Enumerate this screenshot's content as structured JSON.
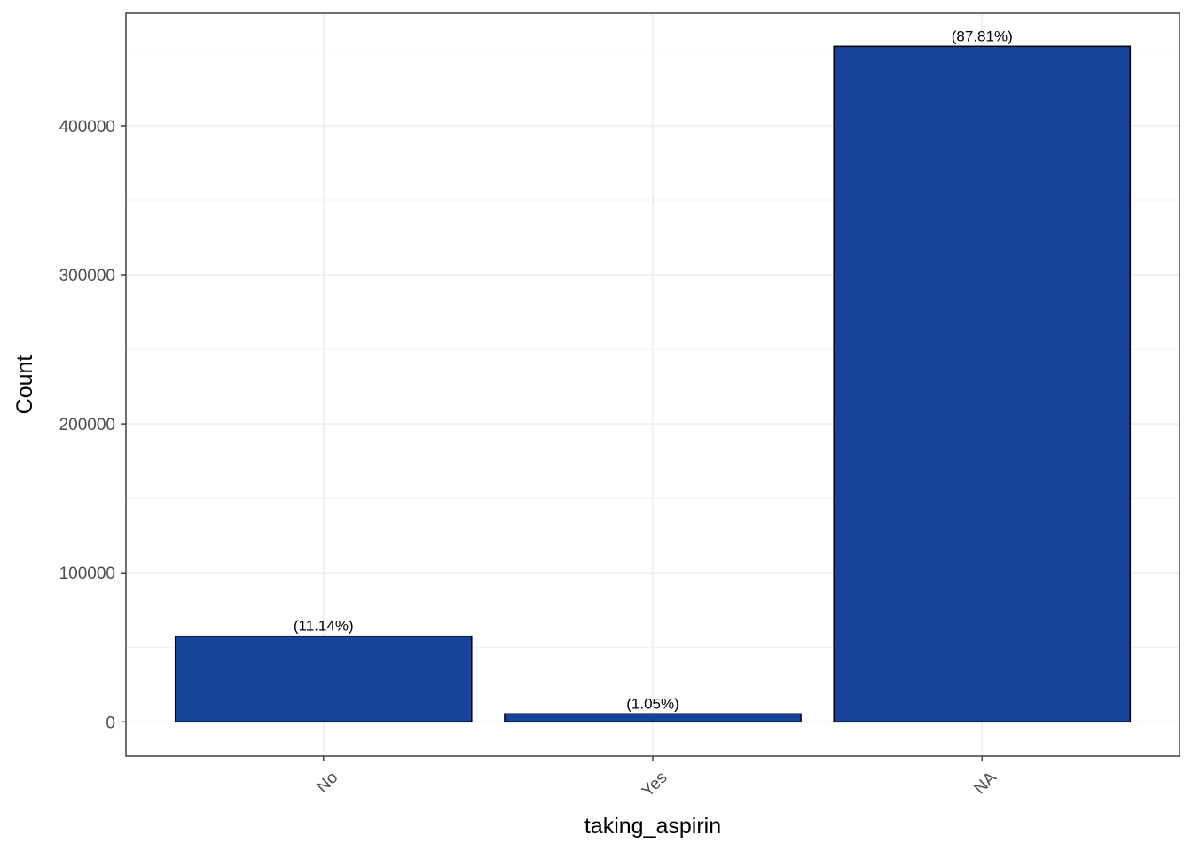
{
  "chart_data": {
    "type": "bar",
    "xlabel": "taking_aspirin",
    "ylabel": "Count",
    "categories": [
      "No",
      "Yes",
      "NA"
    ],
    "values": [
      57500,
      5400,
      453300
    ],
    "labels": [
      "(11.14%)",
      "(1.05%)",
      "(87.81%)"
    ],
    "ylim": [
      -23000,
      475500
    ],
    "yticks": [
      0,
      100000,
      200000,
      300000,
      400000
    ],
    "ytick_labels": [
      "0",
      "100000",
      "200000",
      "300000",
      "400000"
    ],
    "grid": true,
    "legend": "none",
    "bar_color": "#17449A",
    "bar_edge_color": "#000000",
    "grid_color": "#EBEBEB",
    "panel_border_color": "#333333"
  }
}
